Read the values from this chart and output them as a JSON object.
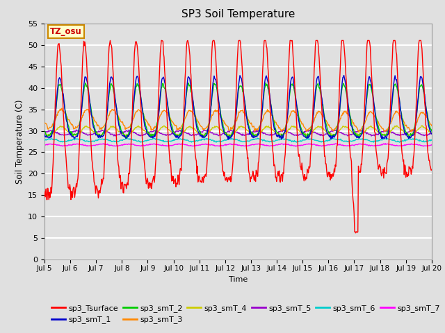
{
  "title": "SP3 Soil Temperature",
  "xlabel": "Time",
  "ylabel": "Soil Temperature (C)",
  "ylim": [
    0,
    55
  ],
  "yticks": [
    0,
    5,
    10,
    15,
    20,
    25,
    30,
    35,
    40,
    45,
    50,
    55
  ],
  "annotation_text": "TZ_osu",
  "annotation_box_color": "#FFFFCC",
  "annotation_text_color": "#CC0000",
  "annotation_border_color": "#CC8800",
  "series_colors": {
    "sp3_Tsurface": "#FF0000",
    "sp3_smT_1": "#0000CC",
    "sp3_smT_2": "#00CC00",
    "sp3_smT_3": "#FF8800",
    "sp3_smT_4": "#CCCC00",
    "sp3_smT_5": "#9900CC",
    "sp3_smT_6": "#00CCCC",
    "sp3_smT_7": "#FF00FF"
  },
  "background_color": "#E0E0E0",
  "plot_bg_color": "#E0E0E0",
  "grid_color": "#FFFFFF",
  "n_points": 720,
  "x_start": 5.0,
  "x_end": 20.0,
  "xtick_labels": [
    "Jul 5",
    "Jul 6",
    "Jul 7",
    "Jul 8",
    "Jul 9",
    "Jul 10",
    "Jul 11",
    "Jul 12",
    "Jul 13",
    "Jul 14",
    "Jul 15",
    "Jul 16",
    "Jul 17",
    "Jul 18",
    "Jul 19",
    "Jul 20"
  ],
  "xtick_positions": [
    5,
    6,
    7,
    8,
    9,
    10,
    11,
    12,
    13,
    14,
    15,
    16,
    17,
    18,
    19,
    20
  ]
}
